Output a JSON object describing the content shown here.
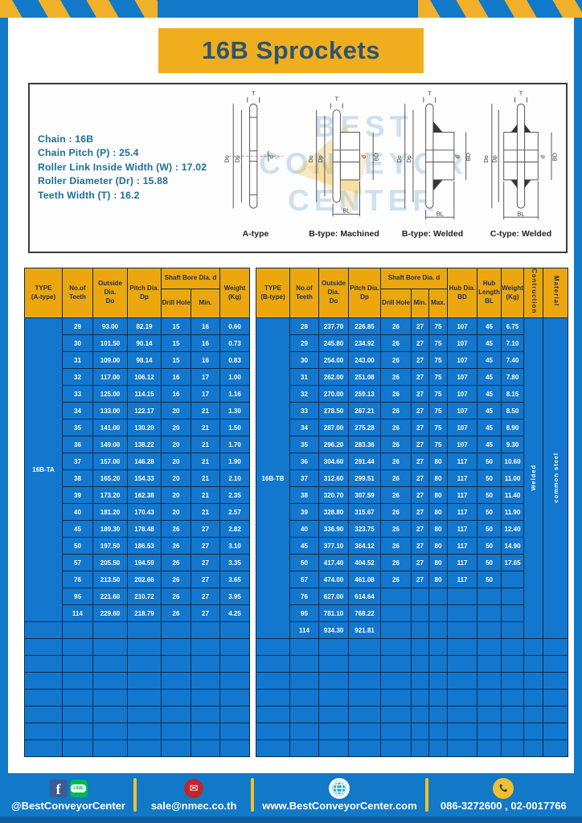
{
  "page": {
    "title": "16B Sprockets"
  },
  "specs": [
    {
      "label": "Chain",
      "value": "16B"
    },
    {
      "label": "Chain Pitch (P)",
      "value": "25.4"
    },
    {
      "label": "Roller Link Inside Width (W)",
      "value": "17.02"
    },
    {
      "label": "Roller Diameter (Dr)",
      "value": "15.88"
    },
    {
      "label": "Teeth Width (T)",
      "value": "16.2"
    }
  ],
  "diagrams": {
    "watermark": [
      "BEST",
      "CONVEYOR",
      "CENTER"
    ],
    "types": [
      "A-type",
      "B-type: Machined",
      "B-type: Welded",
      "C-type: Welded"
    ],
    "dims": {
      "t": "T",
      "do": "Do",
      "dp": "Dp",
      "d": "d",
      "bd": "BD",
      "bl": "BL"
    }
  },
  "tables": {
    "left": {
      "type_label": "16B-TA",
      "header": {
        "type": [
          "TYPE",
          "(A-type)"
        ],
        "teeth": [
          "No.of",
          "Teeth"
        ],
        "outside": [
          "Outside",
          "Dia.",
          "Do"
        ],
        "pitch": [
          "Pitch Dia.",
          "Dp"
        ],
        "shaft": "Shaft Bore Dia. d",
        "drill": "Drill Hole",
        "min": "Min.",
        "weight": [
          "Weight",
          "(Kg)"
        ]
      },
      "rows": [
        [
          "29",
          "93.00",
          "82.19",
          "15",
          "16",
          "0.60"
        ],
        [
          "30",
          "101.50",
          "90.14",
          "15",
          "16",
          "0.73"
        ],
        [
          "31",
          "109.00",
          "98.14",
          "15",
          "16",
          "0.83"
        ],
        [
          "32",
          "117.00",
          "106.12",
          "16",
          "17",
          "1.00"
        ],
        [
          "33",
          "125.00",
          "114.15",
          "16",
          "17",
          "1.16"
        ],
        [
          "34",
          "133.00",
          "122.17",
          "20",
          "21",
          "1.30"
        ],
        [
          "35",
          "141.00",
          "130.20",
          "20",
          "21",
          "1.50"
        ],
        [
          "36",
          "149.00",
          "138.22",
          "20",
          "21",
          "1.70"
        ],
        [
          "37",
          "157.00",
          "146.28",
          "20",
          "21",
          "1.90"
        ],
        [
          "38",
          "165.20",
          "154.33",
          "20",
          "21",
          "2.10"
        ],
        [
          "39",
          "173.20",
          "162.38",
          "20",
          "21",
          "2.35"
        ],
        [
          "40",
          "181.20",
          "170.43",
          "20",
          "21",
          "2.57"
        ],
        [
          "45",
          "189.30",
          "178.48",
          "26",
          "27",
          "2.82"
        ],
        [
          "50",
          "197.50",
          "186.53",
          "26",
          "27",
          "3.10"
        ],
        [
          "57",
          "205.50",
          "194.59",
          "26",
          "27",
          "3.35"
        ],
        [
          "76",
          "213.50",
          "202.66",
          "26",
          "27",
          "3.65"
        ],
        [
          "95",
          "221.60",
          "210.72",
          "26",
          "27",
          "3.95"
        ],
        [
          "114",
          "229.60",
          "218.79",
          "26",
          "27",
          "4.25"
        ]
      ],
      "empty_rows": 8
    },
    "right": {
      "type_label": "16B-TB",
      "construction": "Welded",
      "material": "common steel",
      "header": {
        "type": [
          "TYPE",
          "(B-type)"
        ],
        "teeth": [
          "No.of",
          "Teeth"
        ],
        "outside": [
          "Outside",
          "Dia.",
          "Do"
        ],
        "pitch": [
          "Pitch Dia.",
          "Dp"
        ],
        "shaft": "Shaft Bore Dia. d",
        "drill": "Drill Hole",
        "min": "Min.",
        "max": "Max.",
        "hub_dia": [
          "Hub Dia.",
          "BD"
        ],
        "hub_len": [
          "Hub",
          "Length",
          "BL"
        ],
        "weight": [
          "Weight",
          "(Kg)"
        ],
        "construction": "Contruction",
        "material": "Material"
      },
      "rows": [
        [
          "28",
          "237.70",
          "226.85",
          "26",
          "27",
          "75",
          "107",
          "45",
          "6.75"
        ],
        [
          "29",
          "245.80",
          "234.92",
          "26",
          "27",
          "75",
          "107",
          "45",
          "7.10"
        ],
        [
          "30",
          "254.00",
          "243.00",
          "26",
          "27",
          "75",
          "107",
          "45",
          "7.40"
        ],
        [
          "31",
          "262.00",
          "251.08",
          "26",
          "27",
          "75",
          "107",
          "45",
          "7.80"
        ],
        [
          "32",
          "270.00",
          "259.13",
          "26",
          "27",
          "75",
          "107",
          "45",
          "8.15"
        ],
        [
          "33",
          "278.50",
          "267.21",
          "26",
          "27",
          "75",
          "107",
          "45",
          "8.50"
        ],
        [
          "34",
          "287.00",
          "275.28",
          "26",
          "27",
          "75",
          "107",
          "45",
          "8.90"
        ],
        [
          "35",
          "296.20",
          "283.36",
          "26",
          "27",
          "75",
          "107",
          "45",
          "9.30"
        ],
        [
          "36",
          "304.60",
          "291.44",
          "26",
          "27",
          "80",
          "117",
          "50",
          "10.60"
        ],
        [
          "37",
          "312.60",
          "299.51",
          "26",
          "27",
          "80",
          "117",
          "50",
          "11.00"
        ],
        [
          "38",
          "320.70",
          "307.59",
          "26",
          "27",
          "80",
          "117",
          "50",
          "11.40"
        ],
        [
          "39",
          "328.80",
          "315.67",
          "26",
          "27",
          "80",
          "117",
          "50",
          "11.90"
        ],
        [
          "40",
          "336.90",
          "323.75",
          "26",
          "27",
          "80",
          "117",
          "50",
          "12.40"
        ],
        [
          "45",
          "377.10",
          "364.12",
          "26",
          "27",
          "80",
          "117",
          "50",
          "14.90"
        ],
        [
          "50",
          "417.40",
          "404.52",
          "26",
          "27",
          "80",
          "117",
          "50",
          "17.65"
        ],
        [
          "57",
          "474.00",
          "461.08",
          "26",
          "27",
          "80",
          "117",
          "50",
          ""
        ],
        [
          "76",
          "627.00",
          "614.64",
          "",
          "",
          "",
          "",
          "",
          ""
        ],
        [
          "95",
          "781.10",
          "768.22",
          "",
          "",
          "",
          "",
          "",
          ""
        ],
        [
          "114",
          "934.30",
          "921.81",
          "",
          "",
          "",
          "",
          "",
          ""
        ]
      ],
      "empty_rows": 7
    }
  },
  "footer": {
    "facebook": "f",
    "line": "LINE",
    "social": "@BestConveyorCenter",
    "mail_glyph": "✉",
    "email": "sale@nmec.co.th",
    "website": "www.BestConveyorCenter.com",
    "phone": "086-3272600 , 02-0017766"
  },
  "colors": {
    "frame_blue": "#1278c8",
    "hazard_yellow": "#f0b02a",
    "banner_yellow": "#f0ae1f",
    "banner_text": "#2b5472",
    "header_yellow": "#eca70f",
    "header_text": "#1c3152",
    "cell_blue": "#1377cd",
    "grid_navy": "#0d2c4e",
    "spec_text": "#1d6e99",
    "divider_yellow": "#f0c02e"
  }
}
